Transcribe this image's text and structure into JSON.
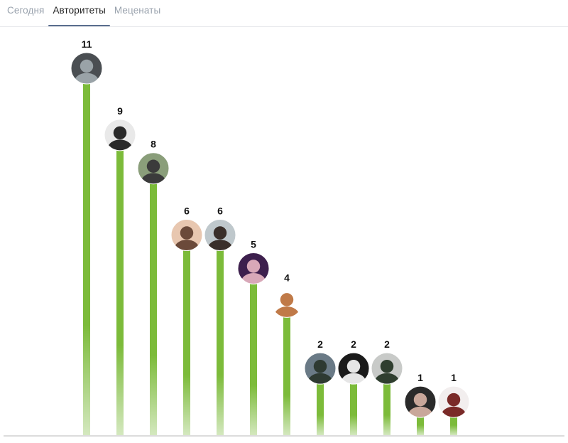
{
  "tabs": [
    {
      "label": "Сегодня",
      "active": false
    },
    {
      "label": "Авторитеты",
      "active": true
    },
    {
      "label": "Меценаты",
      "active": false
    }
  ],
  "colors": {
    "bar_top": "#7cbb3a",
    "bar_bottom": "#d4e8bf",
    "axis": "#dcdcdc",
    "tab_indicator": "#5a6e8e"
  },
  "chart_data": {
    "type": "bar",
    "title": "",
    "xlabel": "",
    "ylabel": "",
    "ylim": [
      0,
      11
    ],
    "grid": false,
    "legend": "none",
    "categories": [
      "",
      "",
      "",
      "",
      "",
      "",
      "",
      "",
      "",
      "",
      "",
      ""
    ],
    "values": [
      11,
      9,
      8,
      6,
      6,
      5,
      4,
      2,
      2,
      2,
      1,
      1
    ],
    "avatars": [
      "avatar-landscape",
      "avatar-man-sunglasses",
      "avatar-man-cap",
      "avatar-woman-blonde",
      "avatar-woman-sunglasses",
      "avatar-woman-dark-hair",
      "avatar-figure-flowers",
      "avatar-trees",
      "avatar-woman-bw",
      "avatar-woman-filter",
      "avatar-woman-black-hair",
      "avatar-woman-red-hair"
    ]
  }
}
